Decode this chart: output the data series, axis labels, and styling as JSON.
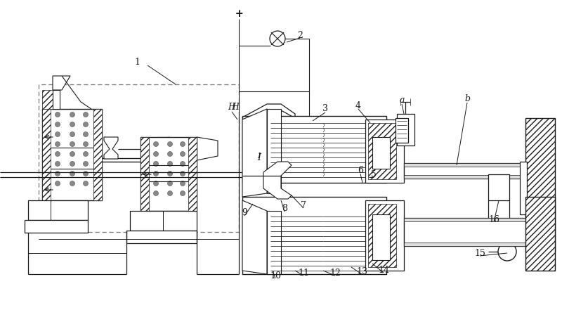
{
  "bg_color": "#ffffff",
  "lc": "#1a1a1a",
  "fig_width": 8.0,
  "fig_height": 4.41,
  "dpi": 100,
  "labels": [
    [
      "1",
      195,
      88
    ],
    [
      "2",
      427,
      50
    ],
    [
      "H",
      335,
      153
    ],
    [
      "I",
      369,
      225
    ],
    [
      "3",
      463,
      155
    ],
    [
      "4",
      510,
      150
    ],
    [
      "a",
      572,
      143
    ],
    [
      "b",
      665,
      141
    ],
    [
      "5",
      532,
      248
    ],
    [
      "6",
      513,
      243
    ],
    [
      "7",
      432,
      292
    ],
    [
      "8",
      405,
      297
    ],
    [
      "9",
      348,
      303
    ],
    [
      "10",
      392,
      392
    ],
    [
      "11",
      432,
      388
    ],
    [
      "12",
      477,
      388
    ],
    [
      "13",
      515,
      386
    ],
    [
      "14",
      546,
      384
    ],
    [
      "15",
      683,
      360
    ],
    [
      "16",
      703,
      312
    ]
  ]
}
